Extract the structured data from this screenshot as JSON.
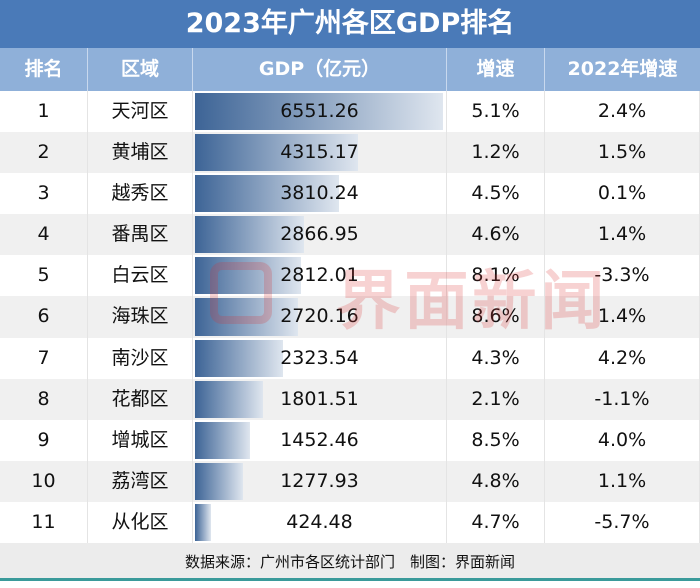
{
  "title": "2023年广州各区GDP排名",
  "headers": [
    "排名",
    "区域",
    "GDP（亿元）",
    "增速",
    "2022年增速"
  ],
  "chart_data": {
    "type": "table",
    "title": "2023年广州各区GDP排名",
    "columns": [
      "排名",
      "区域",
      "GDP（亿元）",
      "增速",
      "2022年增速"
    ],
    "rows": [
      [
        "1",
        "天河区",
        "6551.26",
        "5.1%",
        "2.4%"
      ],
      [
        "2",
        "黄埔区",
        "4315.17",
        "1.2%",
        "1.5%"
      ],
      [
        "3",
        "越秀区",
        "3810.24",
        "4.5%",
        "0.1%"
      ],
      [
        "4",
        "番禺区",
        "2866.95",
        "4.6%",
        "1.4%"
      ],
      [
        "5",
        "白云区",
        "2812.01",
        "8.1%",
        "-3.3%"
      ],
      [
        "6",
        "海珠区",
        "2720.16",
        "8.6%",
        "1.4%"
      ],
      [
        "7",
        "南沙区",
        "2323.54",
        "4.3%",
        "4.2%"
      ],
      [
        "8",
        "花都区",
        "1801.51",
        "2.1%",
        "-1.1%"
      ],
      [
        "9",
        "增城区",
        "1452.46",
        "8.5%",
        "4.0%"
      ],
      [
        "10",
        "荔湾区",
        "1277.93",
        "4.8%",
        "1.1%"
      ],
      [
        "11",
        "从化区",
        "424.48",
        "4.7%",
        "-5.7%"
      ]
    ],
    "bar_column": "GDP（亿元）",
    "bar_colors": [
      "#3d6496",
      "#dfe6ef"
    ]
  },
  "footer": "数据来源：广州市各区统计部门　制图：界面新闻",
  "watermark": "界面新闻",
  "colors": {
    "title_bg": "#4a7ab8",
    "header_bg": "#8fb0d9"
  }
}
